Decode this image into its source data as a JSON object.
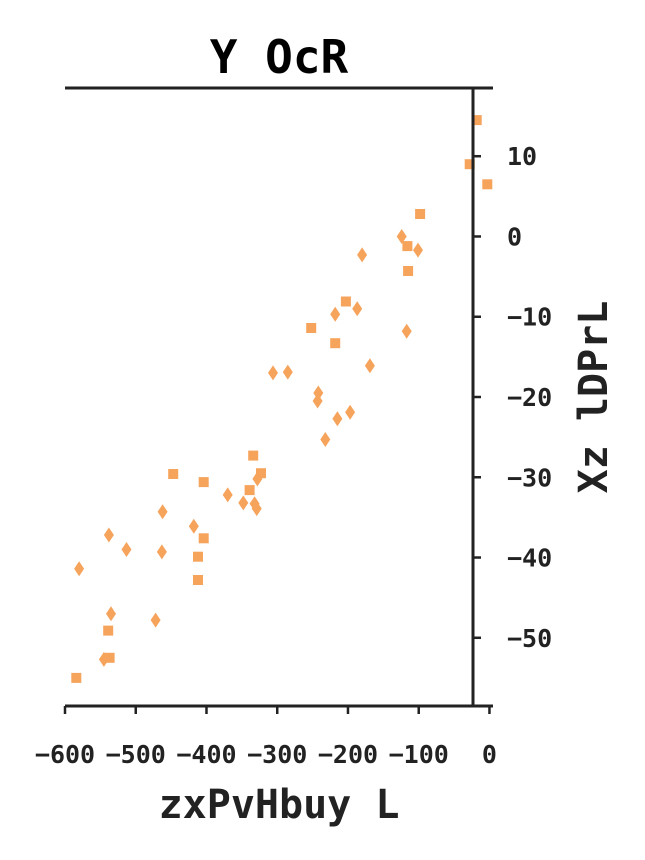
{
  "chart_data": {
    "type": "scatter",
    "title": "Y OcR",
    "xlabel": "zxPvHbuy L",
    "ylabel": "Xz lDPrL",
    "xlim": [
      -600,
      5
    ],
    "ylim": [
      -58.5,
      18.5
    ],
    "xticks": [
      -600,
      -500,
      -400,
      -300,
      -200,
      -100,
      0
    ],
    "xtick_labels": [
      "−600",
      "−500",
      "−400",
      "−300",
      "−200",
      "−100",
      "0"
    ],
    "yticks": [
      -50,
      -40,
      -30,
      -20,
      -10,
      0,
      10
    ],
    "ytick_labels": [
      "−50",
      "−40",
      "−30",
      "−20",
      "−10",
      "0",
      "10"
    ],
    "y_axis_side": "right",
    "grid": false,
    "color": "#f6a35c",
    "series": [
      {
        "marker": "square",
        "points": [
          [
            -18,
            14.5
          ],
          [
            -28,
            9
          ],
          [
            -3,
            6.5
          ],
          [
            -98,
            2.8
          ],
          [
            -116,
            -1.2
          ],
          [
            -115,
            -4.3
          ],
          [
            -203,
            -8.1
          ],
          [
            -252,
            -11.4
          ],
          [
            -218,
            -13.3
          ],
          [
            -334,
            -27.3
          ],
          [
            -447,
            -29.6
          ],
          [
            -404,
            -30.6
          ],
          [
            -323,
            -29.5
          ],
          [
            -339,
            -31.6
          ],
          [
            -404,
            -37.6
          ],
          [
            -412,
            -39.9
          ],
          [
            -412,
            -42.8
          ],
          [
            -539,
            -49.1
          ],
          [
            -537,
            -52.5
          ],
          [
            -584,
            -55.0
          ]
        ]
      },
      {
        "marker": "diamond",
        "points": [
          [
            -124,
            0.0
          ],
          [
            -101,
            -1.7
          ],
          [
            -180,
            -2.3
          ],
          [
            -187,
            -9.0
          ],
          [
            -218,
            -9.7
          ],
          [
            -117,
            -11.8
          ],
          [
            -169,
            -16.1
          ],
          [
            -285,
            -16.9
          ],
          [
            -306,
            -17.0
          ],
          [
            -242,
            -19.5
          ],
          [
            -243,
            -20.5
          ],
          [
            -197,
            -21.9
          ],
          [
            -215,
            -22.7
          ],
          [
            -232,
            -25.3
          ],
          [
            -370,
            -32.2
          ],
          [
            -348,
            -33.2
          ],
          [
            -328,
            -30.2
          ],
          [
            -332,
            -33.3
          ],
          [
            -329,
            -33.9
          ],
          [
            -462,
            -34.3
          ],
          [
            -418,
            -36.1
          ],
          [
            -538,
            -37.2
          ],
          [
            -513,
            -39.0
          ],
          [
            -463,
            -39.3
          ],
          [
            -580,
            -41.4
          ],
          [
            -535,
            -47.0
          ],
          [
            -472,
            -47.8
          ],
          [
            -545,
            -52.7
          ]
        ]
      }
    ]
  }
}
